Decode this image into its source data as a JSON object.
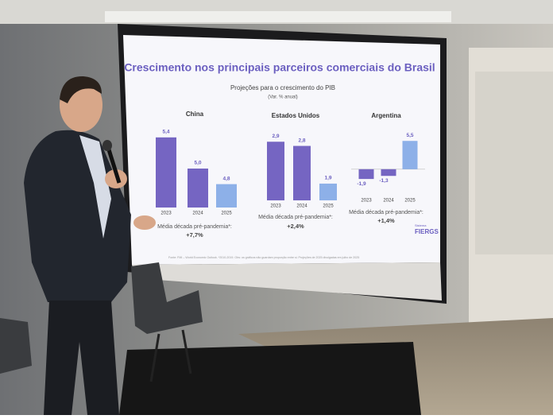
{
  "slide": {
    "title": "Crescimento nos principais parceiros comerciais do Brasil",
    "subtitle": "Projeções para o crescimento do PIB",
    "unit": "(Var. % anual)",
    "footnote": "Fonte: FMI – World Economic Outlook. *2010-2019. Obs: os gráficos não guardam proporção entre si. Projeções de 2025 divulgadas em julho de 2025",
    "logo_top": "Sistema",
    "logo": "FIERGS"
  },
  "chart_data": [
    {
      "type": "bar",
      "title": "China",
      "categories": [
        "2023",
        "2024",
        "2025"
      ],
      "values": [
        5.4,
        5.0,
        4.8
      ],
      "value_labels": [
        "5,4",
        "5,0",
        "4,8"
      ],
      "colors": [
        "#7565c2",
        "#7565c2",
        "#8db0e8"
      ],
      "ylim": [
        4.5,
        5.5
      ],
      "note": "Média década pré-pandemia*:",
      "note_value": "+7,7%"
    },
    {
      "type": "bar",
      "title": "Estados Unidos",
      "categories": [
        "2023",
        "2024",
        "2025"
      ],
      "values": [
        2.9,
        2.8,
        1.9
      ],
      "value_labels": [
        "2,9",
        "2,8",
        "1,9"
      ],
      "colors": [
        "#7565c2",
        "#7565c2",
        "#8db0e8"
      ],
      "ylim": [
        1.5,
        3.0
      ],
      "note": "Média década pré-pandemia*:",
      "note_value": "+2,4%"
    },
    {
      "type": "bar",
      "title": "Argentina",
      "categories": [
        "2023",
        "2024",
        "2025"
      ],
      "values": [
        -1.9,
        -1.3,
        5.5
      ],
      "value_labels": [
        "-1,9",
        "-1,3",
        "5,5"
      ],
      "colors": [
        "#7565c2",
        "#7565c2",
        "#8db0e8"
      ],
      "ylim": [
        -2.5,
        6.0
      ],
      "note": "Média década pré-pandemia*:",
      "note_value": "+1,4%"
    }
  ]
}
